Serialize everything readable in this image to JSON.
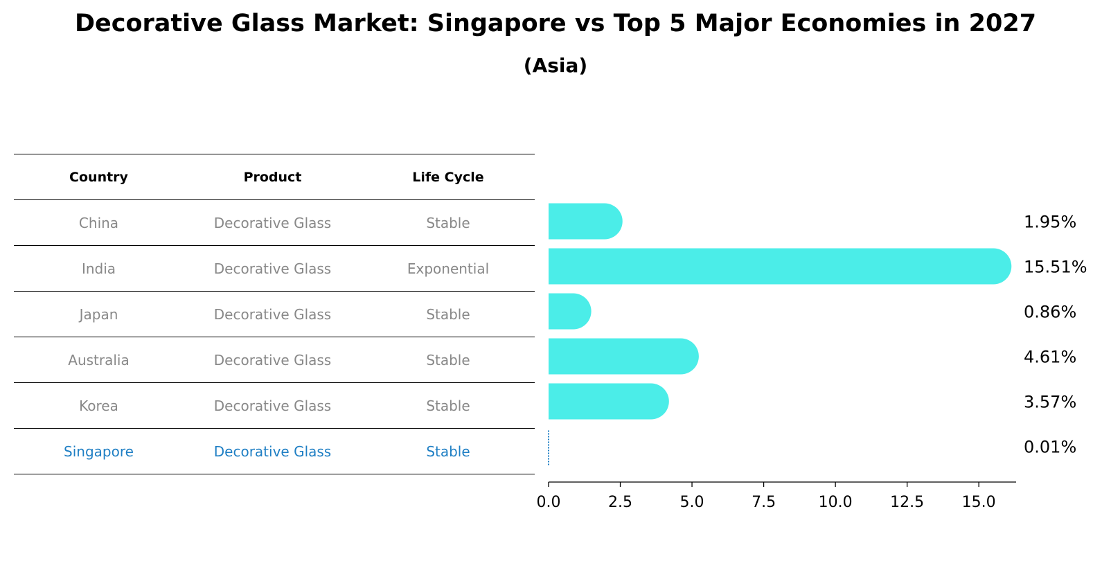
{
  "title": "Decorative Glass Market: Singapore vs Top 5 Major Economies in 2027",
  "subtitle": "(Asia)",
  "table": {
    "headers": [
      "Country",
      "Product",
      "Life Cycle"
    ],
    "rows": [
      [
        "China",
        "Decorative Glass",
        "Stable"
      ],
      [
        "India",
        "Decorative Glass",
        "Exponential"
      ],
      [
        "Japan",
        "Decorative Glass",
        "Stable"
      ],
      [
        "Australia",
        "Decorative Glass",
        "Stable"
      ],
      [
        "Korea",
        "Decorative Glass",
        "Stable"
      ],
      [
        "Singapore",
        "Decorative Glass",
        "Stable"
      ]
    ]
  },
  "chart_data": {
    "type": "bar",
    "orientation": "horizontal",
    "categories": [
      "China",
      "India",
      "Japan",
      "Australia",
      "Korea",
      "Singapore"
    ],
    "values": [
      1.95,
      15.51,
      0.86,
      4.61,
      3.57,
      0.01
    ],
    "value_labels": [
      "1.95%",
      "15.51%",
      "0.86%",
      "4.61%",
      "3.57%",
      "0.01%"
    ],
    "xlim": [
      0,
      16.3
    ],
    "xticks": [
      0.0,
      2.5,
      5.0,
      7.5,
      10.0,
      12.5,
      15.0
    ],
    "xtick_labels": [
      "0.0",
      "2.5",
      "5.0",
      "7.5",
      "10.0",
      "12.5",
      "15.0"
    ],
    "highlight": "Singapore",
    "bar_color": "#4bede8",
    "highlight_color": "#1f7fc4"
  }
}
